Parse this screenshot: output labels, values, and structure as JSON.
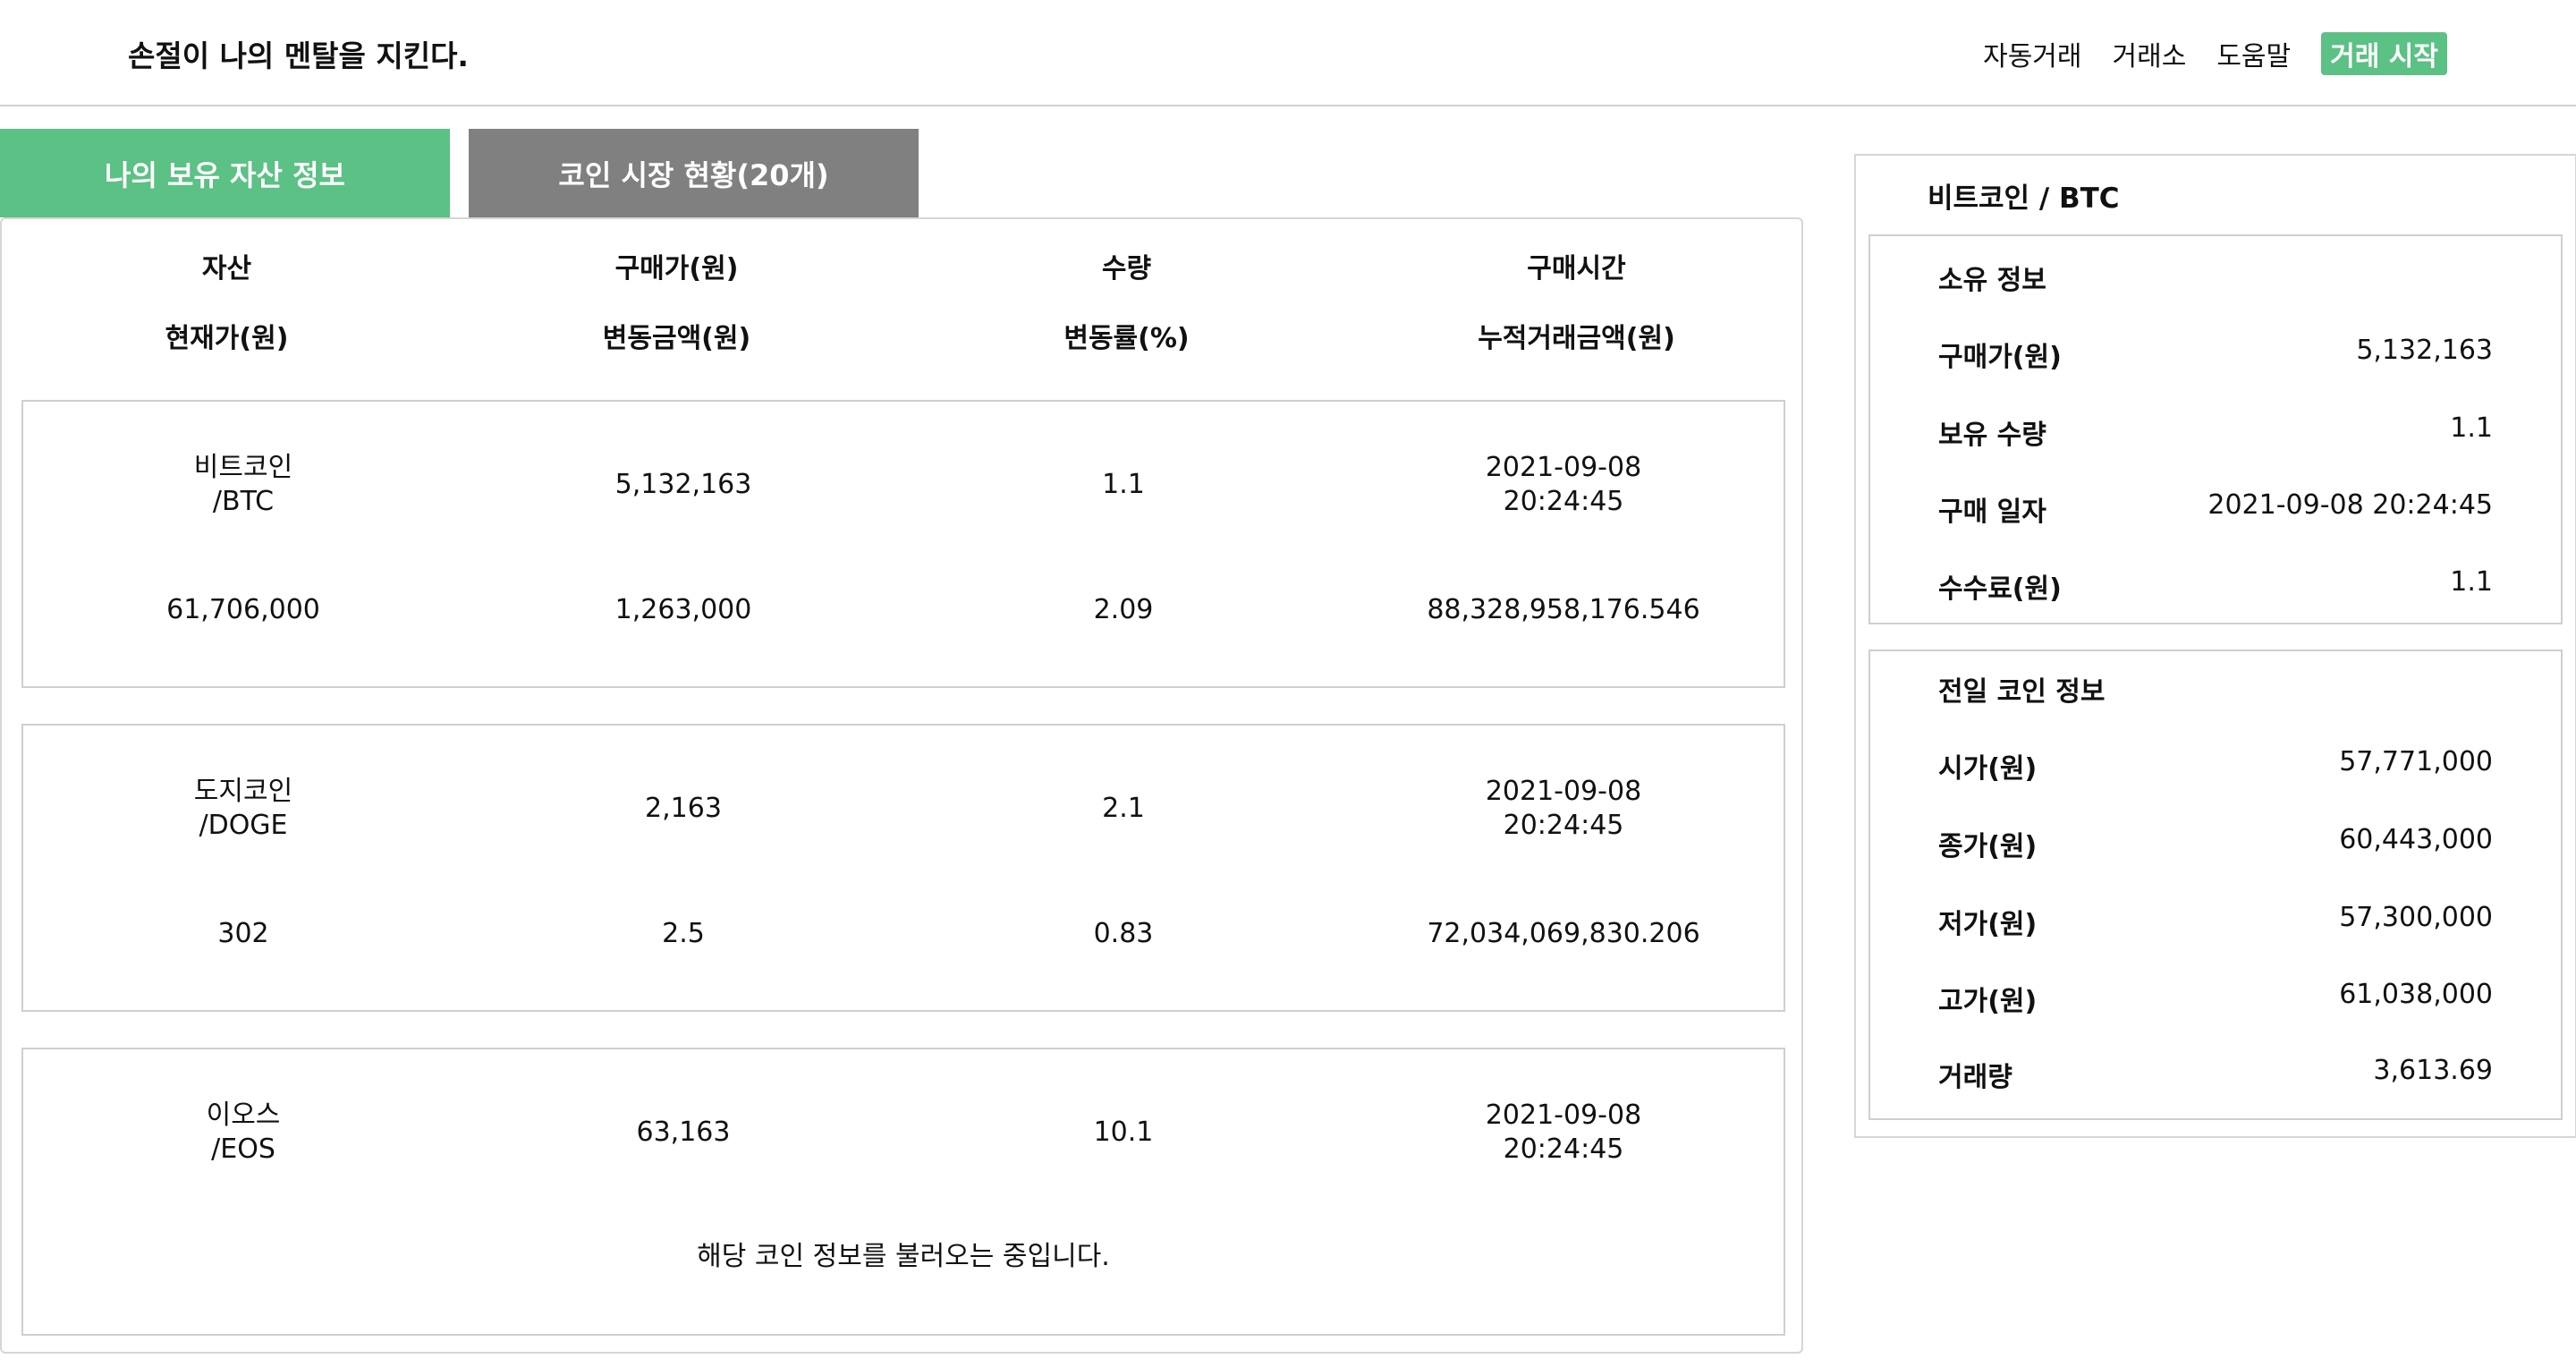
{
  "header": {
    "brand": "손절이 나의 멘탈을 지킨다.",
    "nav": [
      "자동거래",
      "거래소",
      "도움말"
    ],
    "cta": "거래 시작",
    "accent_color": "#5bc184"
  },
  "tabs": [
    {
      "label": "나의 보유 자산 정보",
      "active": true
    },
    {
      "label": "코인 시장 현황(20개)",
      "active": false
    }
  ],
  "table": {
    "headers_row1": [
      "자산",
      "구매가(원)",
      "수량",
      "구매시간"
    ],
    "headers_row2": [
      "현재가(원)",
      "변동금액(원)",
      "변동률(%)",
      "누적거래금액(원)"
    ],
    "rows": [
      {
        "name_line1": "비트코인",
        "name_line2": "/BTC",
        "buy_price": "5,132,163",
        "quantity": "1.1",
        "buy_date": "2021-09-08",
        "buy_time": "20:24:45",
        "current_price": "61,706,000",
        "change_amount": "1,263,000",
        "change_rate": "2.09",
        "acc_trade": "88,328,958,176.546"
      },
      {
        "name_line1": "도지코인",
        "name_line2": "/DOGE",
        "buy_price": "2,163",
        "quantity": "2.1",
        "buy_date": "2021-09-08",
        "buy_time": "20:24:45",
        "current_price": "302",
        "change_amount": "2.5",
        "change_rate": "0.83",
        "acc_trade": "72,034,069,830.206"
      },
      {
        "name_line1": "이오스",
        "name_line2": "/EOS",
        "buy_price": "63,163",
        "quantity": "10.1",
        "buy_date": "2021-09-08",
        "buy_time": "20:24:45",
        "loading": "해당 코인 정보를 불러오는 중입니다."
      }
    ]
  },
  "side": {
    "title": "비트코인 / BTC",
    "own": {
      "heading": "소유 정보",
      "items": [
        {
          "k": "구매가(원)",
          "v": "5,132,163"
        },
        {
          "k": "보유 수량",
          "v": "1.1"
        },
        {
          "k": "구매 일자",
          "v": "2021-09-08 20:24:45"
        },
        {
          "k": "수수료(원)",
          "v": "1.1"
        }
      ]
    },
    "prev": {
      "heading": "전일 코인 정보",
      "items": [
        {
          "k": "시가(원)",
          "v": "57,771,000"
        },
        {
          "k": "종가(원)",
          "v": "60,443,000"
        },
        {
          "k": "저가(원)",
          "v": "57,300,000"
        },
        {
          "k": "고가(원)",
          "v": "61,038,000"
        },
        {
          "k": "거래량",
          "v": "3,613.69"
        }
      ]
    }
  }
}
